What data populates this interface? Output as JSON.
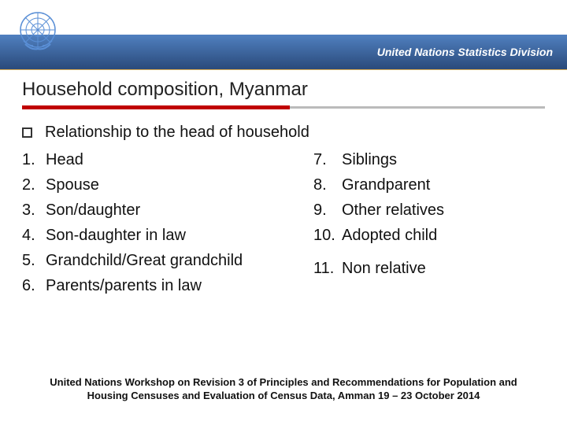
{
  "header": {
    "org_label": "United Nations Statistics Division",
    "bar_gradient_top": "#5080c0",
    "bar_gradient_bottom": "#2a4a7a",
    "accent_border": "#d8a850",
    "logo_stroke": "#5a8fd6"
  },
  "title": {
    "text": "Household composition, Myanmar",
    "fontsize": 24,
    "rule_red": "#c00000",
    "rule_gray": "#bbbbbb"
  },
  "content": {
    "lead": "Relationship to the head of household",
    "left_items": [
      {
        "n": "1.",
        "t": "Head"
      },
      {
        "n": "2.",
        "t": "Spouse"
      },
      {
        "n": "3.",
        "t": "Son/daughter"
      },
      {
        "n": "4.",
        "t": "Son-daughter in law"
      },
      {
        "n": "5.",
        "t": "Grandchild/Great grandchild"
      },
      {
        "n": "6.",
        "t": "Parents/parents in law"
      }
    ],
    "right_items_a": [
      {
        "n": "7.",
        "t": "Siblings"
      },
      {
        "n": "8.",
        "t": "Grandparent"
      },
      {
        "n": "9.",
        "t": "Other relatives"
      },
      {
        "n": "10.",
        "t": "Adopted child"
      }
    ],
    "right_items_b": [
      {
        "n": "11.",
        "t": "Non relative"
      }
    ],
    "text_color": "#111111",
    "item_fontsize": 20
  },
  "footer": {
    "line1": "United Nations Workshop on  Revision 3 of Principles and Recommendations for Population and",
    "line2": "Housing Censuses and Evaluation of Census Data, Amman 19 – 23 October 2014",
    "fontsize": 13,
    "weight": "bold"
  }
}
